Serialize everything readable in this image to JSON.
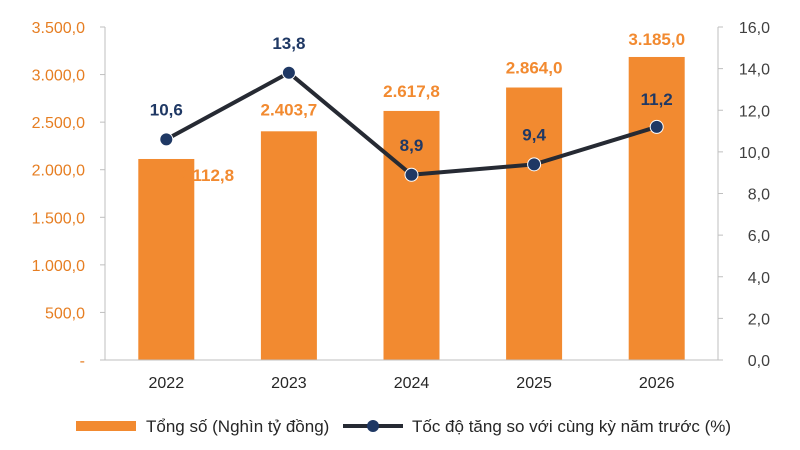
{
  "chart_data": {
    "type": "bar",
    "categories": [
      "2022",
      "2023",
      "2024",
      "2025",
      "2026"
    ],
    "series": [
      {
        "name": "Tổng số (Nghìn tỷ đồng)",
        "kind": "bar",
        "axis": "left",
        "color": "#f28a30",
        "values": [
          2112.8,
          2403.7,
          2617.8,
          2864.0,
          3185.0
        ],
        "labels": [
          "2.112,8",
          "2.403,7",
          "2.617,8",
          "2.864,0",
          "3.185,0"
        ]
      },
      {
        "name": "Tốc độ tăng so với cùng kỳ năm trước (%)",
        "kind": "line",
        "axis": "right",
        "color": "#262a33",
        "marker_color": "#1f3864",
        "values": [
          10.6,
          13.8,
          8.9,
          9.4,
          11.2
        ],
        "labels": [
          "10,6",
          "13,8",
          "8,9",
          "9,4",
          "11,2"
        ]
      }
    ],
    "y_left": {
      "ylim": [
        0,
        3500
      ],
      "ticks": [
        0,
        500,
        1000,
        1500,
        2000,
        2500,
        3000,
        3500
      ],
      "tick_labels": [
        "-",
        "500,0",
        "1.000,0",
        "1.500,0",
        "2.000,0",
        "2.500,0",
        "3.000,0",
        "3.500,0"
      ],
      "color": "#e67e22"
    },
    "y_right": {
      "ylim": [
        0,
        16
      ],
      "ticks": [
        0,
        2,
        4,
        6,
        8,
        10,
        12,
        14,
        16
      ],
      "tick_labels": [
        "0,0",
        "2,0",
        "4,0",
        "6,0",
        "8,0",
        "10,0",
        "12,0",
        "14,0",
        "16,0"
      ]
    },
    "grid": false,
    "legend_position": "bottom"
  }
}
